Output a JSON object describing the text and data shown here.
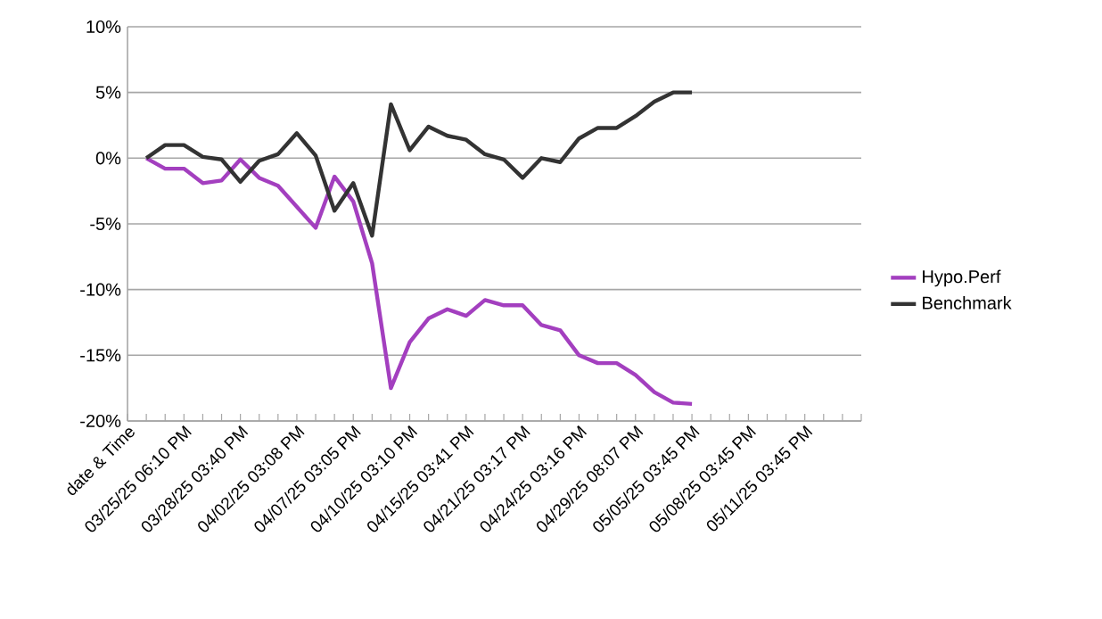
{
  "chart_data": {
    "type": "line",
    "categories": [
      "date & Time",
      null,
      null,
      "03/25/25 06:10 PM",
      null,
      null,
      "03/28/25 03:40 PM",
      null,
      null,
      "04/02/25 03:08 PM",
      null,
      null,
      "04/07/25 03:05 PM",
      null,
      null,
      "04/10/25 03:10 PM",
      null,
      null,
      "04/15/25 03:41 PM",
      null,
      null,
      "04/21/25 03:17 PM",
      null,
      null,
      "04/24/25 03:16 PM",
      null,
      null,
      "04/29/25 08:07 PM",
      null,
      null,
      "05/05/25 03:45 PM",
      null,
      null,
      "05/08/25 03:45 PM",
      null,
      null,
      "05/11/25 03:45 PM",
      null,
      null,
      null
    ],
    "series": [
      {
        "name": "Hypo.Perf",
        "color": "#a33fbf",
        "values": [
          null,
          0,
          -0.8,
          -0.8,
          -1.9,
          -1.7,
          -0.1,
          -1.5,
          -2.1,
          -3.7,
          -5.3,
          -1.4,
          -3.3,
          -8.0,
          -17.5,
          -14.0,
          -12.2,
          -11.5,
          -12.0,
          -10.8,
          -11.2,
          -11.2,
          -12.7,
          -13.1,
          -15.0,
          -15.6,
          -15.6,
          -16.5,
          -17.8,
          -18.6,
          -18.7,
          null,
          null,
          null,
          null,
          null,
          null,
          null,
          null,
          null
        ]
      },
      {
        "name": "Benchmark",
        "color": "#333333",
        "values": [
          null,
          0,
          1.0,
          1.0,
          0.1,
          -0.1,
          -1.8,
          -0.2,
          0.3,
          1.9,
          0.2,
          -4.0,
          -1.9,
          -5.9,
          4.1,
          0.6,
          2.4,
          1.7,
          1.4,
          0.3,
          -0.1,
          -1.5,
          0,
          -0.3,
          1.5,
          2.3,
          2.3,
          3.2,
          4.3,
          5.0,
          5.0,
          null,
          null,
          null,
          null,
          null,
          null,
          null,
          null,
          null
        ]
      }
    ],
    "ylim": [
      -20,
      10
    ],
    "yticks": [
      {
        "value": -20,
        "label": "-20%"
      },
      {
        "value": -15,
        "label": "-15%"
      },
      {
        "value": -10,
        "label": "-10%"
      },
      {
        "value": -5,
        "label": "-5%"
      },
      {
        "value": 0,
        "label": "0%"
      },
      {
        "value": 5,
        "label": "5%"
      },
      {
        "value": 10,
        "label": "10%"
      }
    ],
    "grid": "y",
    "legend": "right",
    "marker": "none",
    "line_style": "solid"
  }
}
